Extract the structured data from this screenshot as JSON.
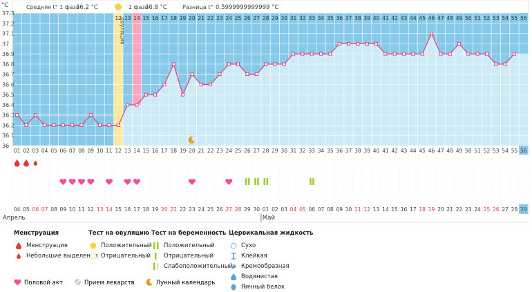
{
  "header": {
    "phase1_label": "Средняя t° 1 фаза",
    "phase1_value": "36.2 °C",
    "phase2_label": "2 фаза",
    "phase2_value": "36.8 °C",
    "diff_label": "Разница t°",
    "diff_value": "0.5999999999999 °C",
    "unit": "°C"
  },
  "chart_data": {
    "type": "line",
    "ylabel": "°C",
    "ylim": [
      36.0,
      37.3
    ],
    "yticks": [
      "37.3",
      "37.2",
      "37.1",
      "37",
      "36.9",
      "36.8",
      "36.7",
      "36.6",
      "36.5",
      "36.4",
      "36.3",
      "36.2",
      "36.1",
      "36"
    ],
    "cycle_days": [
      "01",
      "02",
      "03",
      "04",
      "05",
      "06",
      "07",
      "08",
      "09",
      "10",
      "11",
      "12",
      "13",
      "14",
      "15",
      "16",
      "17",
      "18",
      "19",
      "20",
      "21",
      "22",
      "23",
      "24",
      "25",
      "26",
      "27",
      "28",
      "29",
      "30",
      "31",
      "32",
      "33",
      "34",
      "35",
      "36",
      "37",
      "38",
      "39",
      "40",
      "41",
      "42",
      "43",
      "44",
      "45",
      "46",
      "47",
      "48",
      "49",
      "50",
      "51",
      "52",
      "53",
      "54",
      "55",
      "56"
    ],
    "temperatures": [
      36.3,
      36.2,
      36.3,
      36.2,
      36.2,
      36.2,
      36.2,
      36.2,
      36.3,
      36.2,
      36.2,
      36.2,
      36.4,
      36.4,
      36.5,
      36.5,
      36.6,
      36.8,
      36.5,
      36.7,
      36.6,
      36.6,
      36.7,
      36.8,
      36.8,
      36.7,
      36.7,
      36.8,
      36.8,
      36.8,
      36.9,
      36.9,
      36.9,
      36.9,
      36.9,
      37.0,
      37.0,
      37.0,
      37.0,
      37.0,
      36.9,
      36.9,
      36.9,
      36.9,
      36.9,
      37.1,
      36.9,
      36.9,
      37.0,
      36.9,
      36.9,
      36.9,
      36.8,
      36.8,
      36.9
    ],
    "ovulation_label": "овуляция",
    "ovulation_day": 12,
    "highlight_day": 14,
    "current_day": "56",
    "dates": [
      "04",
      "05",
      "06",
      "07",
      "08",
      "09",
      "10",
      "11",
      "12",
      "13",
      "14",
      "15",
      "16",
      "17",
      "18",
      "19",
      "20",
      "21",
      "22",
      "23",
      "24",
      "25",
      "26",
      "27",
      "28",
      "29",
      "30",
      "01",
      "02",
      "03",
      "04",
      "05",
      "06",
      "07",
      "08",
      "09",
      "10",
      "11",
      "12",
      "13",
      "14",
      "15",
      "16",
      "17",
      "18",
      "19",
      "20",
      "21",
      "22",
      "23",
      "24",
      "25",
      "26",
      "27",
      "28",
      "29"
    ],
    "red_dates_idx": [
      2,
      3,
      9,
      10,
      16,
      17,
      23,
      24,
      30,
      31,
      37,
      38,
      44,
      45,
      51,
      52
    ],
    "month_april": "Апрель",
    "month_may": "Май",
    "menstruation_days": [
      1,
      2,
      3
    ],
    "sex_days": [
      6,
      7,
      8,
      9,
      11,
      13,
      14,
      20,
      24
    ],
    "pregnancy_test_days": [
      26,
      27,
      28,
      33
    ],
    "moon_day": 20,
    "colors": {
      "phase1": "#87c9e8",
      "phase2": "#cdeaf7",
      "ovulation": "#fbe9a0",
      "highlight": "#f7a8c0",
      "line": "#e0407a",
      "grid": "#ffffff",
      "current": "#87c9e8"
    }
  },
  "legend": {
    "menstruation": {
      "title": "Менструация",
      "items": [
        "Менструация",
        "Небольшие выделения"
      ]
    },
    "ovulation_test": {
      "title": "Тест на овуляцию",
      "items": [
        "Положительный",
        "Отрицательный"
      ]
    },
    "pregnancy_test": {
      "title": "Тест на беременность",
      "items": [
        "Положительный",
        "Отрицательный",
        "Слабоположительный"
      ]
    },
    "cervical": {
      "title": "Цервикальная жидкость",
      "items": [
        "Сухо",
        "Клейкая",
        "Кремообразная",
        "Водянистая",
        "Яичный белок"
      ]
    },
    "bottom": [
      "Половой акт",
      "Прием лекарств",
      "Лунный календарь"
    ]
  }
}
